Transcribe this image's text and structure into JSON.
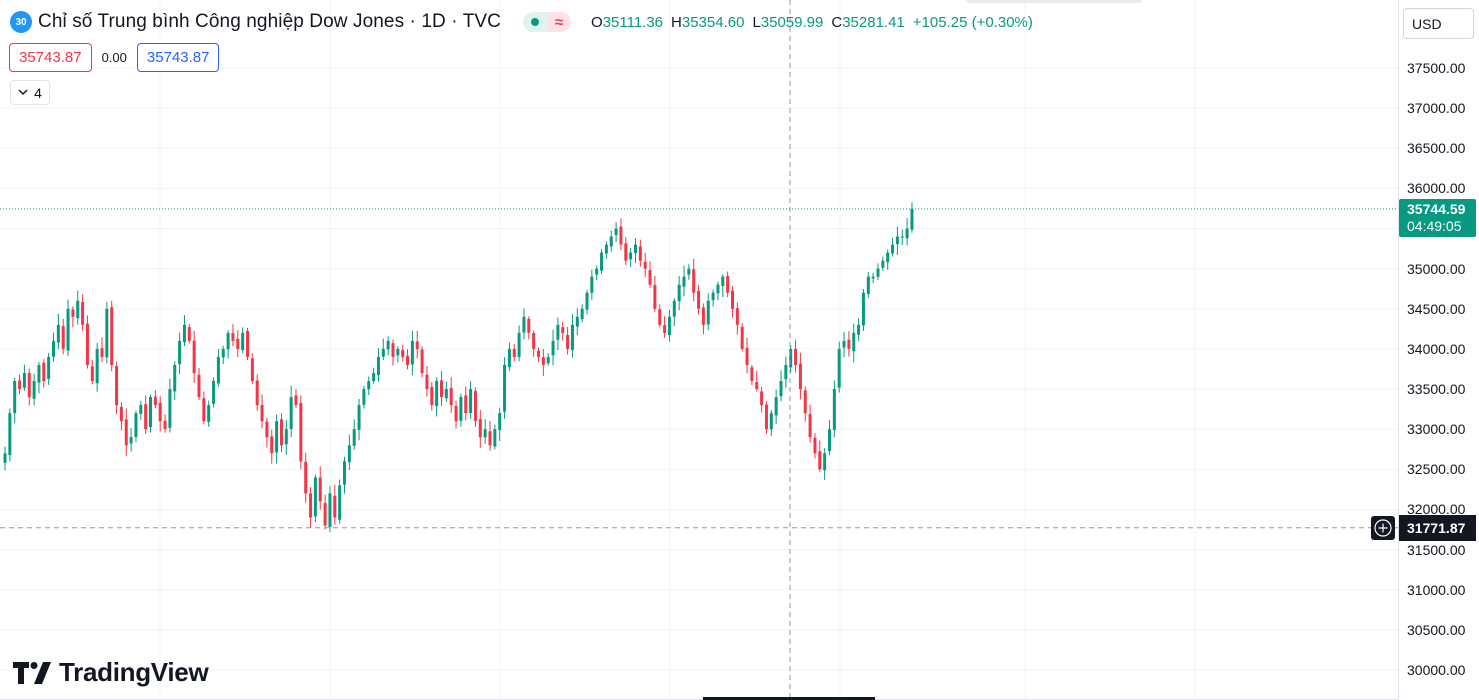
{
  "header": {
    "symbol_badge": "30",
    "title": "Chỉ số Trung bình Công nghiệp Dow Jones · 1D · TVC",
    "status_wave": "≈",
    "ohlc": {
      "o_label": "O",
      "o_value": "35111.36",
      "h_label": "H",
      "h_value": "35354.60",
      "l_label": "L",
      "l_value": "35059.99",
      "c_label": "C",
      "c_value": "35281.41",
      "change": "+105.25 (+0.30%)"
    }
  },
  "trade": {
    "sell_price": "35743.87",
    "spread": "0.00",
    "buy_price": "35743.87"
  },
  "indicators_toggle": {
    "count": "4"
  },
  "currency": {
    "label": "USD"
  },
  "price_axis": {
    "labels": [
      "37500.00",
      "37000.00",
      "36500.00",
      "36000.00",
      "35500.00",
      "35000.00",
      "34500.00",
      "34000.00",
      "33500.00",
      "33000.00",
      "32500.00",
      "32000.00",
      "31500.00",
      "31000.00",
      "30500.00",
      "30000.00"
    ],
    "last_price": "35744.59",
    "countdown": "04:49:05",
    "crosshair_price": "31771.87"
  },
  "brand": {
    "name": "TradingView"
  },
  "colors": {
    "up": "#089981",
    "down": "#f23645",
    "accent": "#2962ff"
  },
  "chart_data": {
    "type": "candlestick",
    "ylim": [
      30000,
      37500
    ],
    "last_price": 35744.59,
    "crosshair_price": 31771.87,
    "closes": [
      32700,
      33200,
      33600,
      33500,
      33700,
      33400,
      33600,
      33800,
      33600,
      33900,
      34100,
      34300,
      34000,
      34500,
      34400,
      34600,
      34300,
      33800,
      33600,
      34000,
      33900,
      34500,
      33800,
      33300,
      33100,
      32800,
      32900,
      33200,
      33300,
      33000,
      33400,
      33300,
      33100,
      33000,
      33500,
      33800,
      34100,
      34300,
      34100,
      33700,
      33400,
      33100,
      33300,
      33600,
      33900,
      34000,
      34200,
      34100,
      34000,
      34200,
      33900,
      33600,
      33300,
      33100,
      32900,
      32700,
      33100,
      32800,
      33000,
      33400,
      33300,
      32600,
      32200,
      31900,
      32400,
      32100,
      31800,
      32200,
      31900,
      32300,
      32600,
      32800,
      33000,
      33300,
      33500,
      33600,
      33700,
      33900,
      34000,
      34100,
      33900,
      34000,
      33900,
      33800,
      34100,
      34000,
      33700,
      33500,
      33300,
      33600,
      33400,
      33500,
      33300,
      33100,
      33400,
      33200,
      33500,
      33100,
      32900,
      33000,
      32800,
      33000,
      33200,
      33800,
      34000,
      33900,
      34200,
      34400,
      34200,
      34000,
      33900,
      33800,
      33900,
      34100,
      34300,
      34200,
      34000,
      34300,
      34400,
      34500,
      34700,
      34900,
      35000,
      35200,
      35300,
      35400,
      35500,
      35300,
      35100,
      35200,
      35300,
      35100,
      35000,
      34800,
      34500,
      34300,
      34200,
      34400,
      34600,
      34800,
      34900,
      35000,
      34700,
      34500,
      34300,
      34600,
      34700,
      34800,
      34900,
      34700,
      34500,
      34300,
      34000,
      33800,
      33600,
      33500,
      33300,
      33000,
      33200,
      33400,
      33600,
      33800,
      34000,
      33800,
      33500,
      33200,
      32900,
      32700,
      32500,
      32700,
      33000,
      33500,
      34000,
      34100,
      34000,
      34200,
      34300,
      34700,
      34900,
      34900,
      35000,
      35100,
      35200,
      35300,
      35400,
      35400,
      35500,
      35744.59
    ]
  }
}
